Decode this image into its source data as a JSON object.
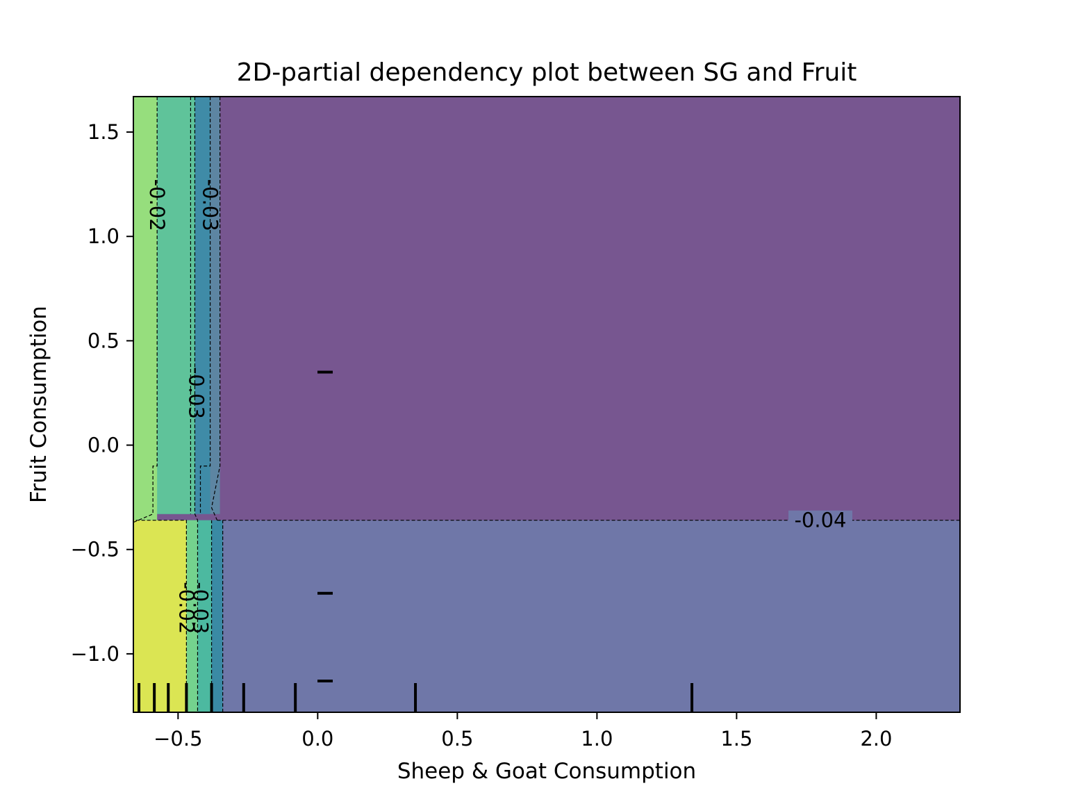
{
  "chart_data": {
    "type": "heatmap",
    "subtype": "filled-contour",
    "title": "2D-partial dependency plot between SG and Fruit",
    "xlabel": "Sheep & Goat Consumption",
    "ylabel": "Fruit Consumption",
    "xlim": [
      -0.66,
      2.3
    ],
    "ylim": [
      -1.28,
      1.67
    ],
    "x_ticks": [
      {
        "value": -0.5,
        "label": "−0.5"
      },
      {
        "value": 0.0,
        "label": "0.0"
      },
      {
        "value": 0.5,
        "label": "0.5"
      },
      {
        "value": 1.0,
        "label": "1.0"
      },
      {
        "value": 1.5,
        "label": "1.5"
      },
      {
        "value": 2.0,
        "label": "2.0"
      }
    ],
    "y_ticks": [
      {
        "value": 1.5,
        "label": "1.5"
      },
      {
        "value": 1.0,
        "label": "1.0"
      },
      {
        "value": 0.5,
        "label": "0.5"
      },
      {
        "value": 0.0,
        "label": "0.0"
      },
      {
        "value": -0.5,
        "label": "−0.5"
      },
      {
        "value": -1.0,
        "label": "−1.0"
      }
    ],
    "regions": [
      {
        "x": [
          -0.66,
          2.3
        ],
        "y": [
          -1.28,
          1.67
        ],
        "color": "#6f77a8"
      },
      {
        "x": [
          -0.66,
          2.3
        ],
        "y": [
          -0.36,
          1.67
        ],
        "color": "#775690"
      },
      {
        "x": [
          -0.66,
          -0.35
        ],
        "y": [
          -0.33,
          1.67
        ],
        "color": "#5d85a2"
      },
      {
        "x": [
          -0.66,
          -0.385
        ],
        "y": [
          -0.33,
          1.67
        ],
        "color": "#3f8ba7"
      },
      {
        "x": [
          -0.66,
          -0.44
        ],
        "y": [
          -0.33,
          1.67
        ],
        "color": "#5fc39a"
      },
      {
        "x": [
          -0.66,
          -0.575
        ],
        "y": [
          -0.37,
          1.67
        ],
        "color": "#96de7d"
      },
      {
        "x": [
          -0.66,
          -0.34
        ],
        "y": [
          -1.28,
          -0.36
        ],
        "color": "#3a8aa4"
      },
      {
        "x": [
          -0.66,
          -0.38
        ],
        "y": [
          -1.28,
          -0.36
        ],
        "color": "#4cb9a0"
      },
      {
        "x": [
          -0.66,
          -0.43
        ],
        "y": [
          -1.28,
          -0.36
        ],
        "color": "#74d28e"
      },
      {
        "x": [
          -0.66,
          -0.47
        ],
        "y": [
          -1.28,
          -0.36
        ],
        "color": "#dbe553"
      }
    ],
    "contour_lines": [
      {
        "level": "-0.04",
        "points": [
          [
            -0.36,
            -0.36
          ],
          [
            2.3,
            -0.36
          ]
        ]
      },
      {
        "level": "-0.03",
        "points": [
          [
            -0.35,
            1.67
          ],
          [
            -0.35,
            -0.1
          ],
          [
            -0.38,
            -0.3
          ],
          [
            -0.36,
            -0.36
          ]
        ]
      },
      {
        "level": "-0.03",
        "points": [
          [
            -0.385,
            1.67
          ],
          [
            -0.385,
            -0.1
          ],
          [
            -0.42,
            -0.1
          ],
          [
            -0.42,
            -0.33
          ]
        ]
      },
      {
        "level": "-0.03",
        "points": [
          [
            -0.44,
            1.67
          ],
          [
            -0.44,
            -0.33
          ],
          [
            -0.43,
            -0.36
          ],
          [
            -0.43,
            -1.28
          ]
        ]
      },
      {
        "level": "-0.03",
        "points": [
          [
            -0.455,
            1.67
          ],
          [
            -0.455,
            -0.33
          ]
        ]
      },
      {
        "level": "-0.02",
        "points": [
          [
            -0.575,
            1.67
          ],
          [
            -0.575,
            -0.1
          ],
          [
            -0.59,
            -0.1
          ],
          [
            -0.59,
            -0.33
          ],
          [
            -0.66,
            -0.37
          ]
        ]
      },
      {
        "level": "-0.02",
        "points": [
          [
            -0.47,
            -1.28
          ],
          [
            -0.47,
            -0.36
          ],
          [
            -0.66,
            -0.36
          ]
        ]
      },
      {
        "level": "-0.03",
        "points": [
          [
            -0.34,
            -1.28
          ],
          [
            -0.34,
            -0.36
          ]
        ]
      },
      {
        "level": "-0.03",
        "points": [
          [
            -0.38,
            -1.28
          ],
          [
            -0.38,
            -0.36
          ]
        ]
      }
    ],
    "contour_labels": [
      {
        "text": "-0.02",
        "x": -0.575,
        "y": 1.15,
        "rotate": 90
      },
      {
        "text": "-0.03",
        "x": -0.385,
        "y": 1.15,
        "rotate": 90
      },
      {
        "text": "-0.03",
        "x": -0.435,
        "y": 0.25,
        "rotate": 90
      },
      {
        "text": "-0.04",
        "x": 1.8,
        "y": -0.36,
        "rotate": 0
      },
      {
        "text": "-0.03",
        "x": -0.42,
        "y": -0.78,
        "rotate": 90
      },
      {
        "text": "-0.02",
        "x": -0.47,
        "y": -0.78,
        "rotate": 90
      }
    ],
    "x_deciles": [
      -0.64,
      -0.585,
      -0.535,
      -0.47,
      -0.38,
      -0.265,
      -0.08,
      0.35,
      1.34
    ],
    "y_deciles": [
      0.35,
      -0.71,
      -1.13
    ]
  }
}
